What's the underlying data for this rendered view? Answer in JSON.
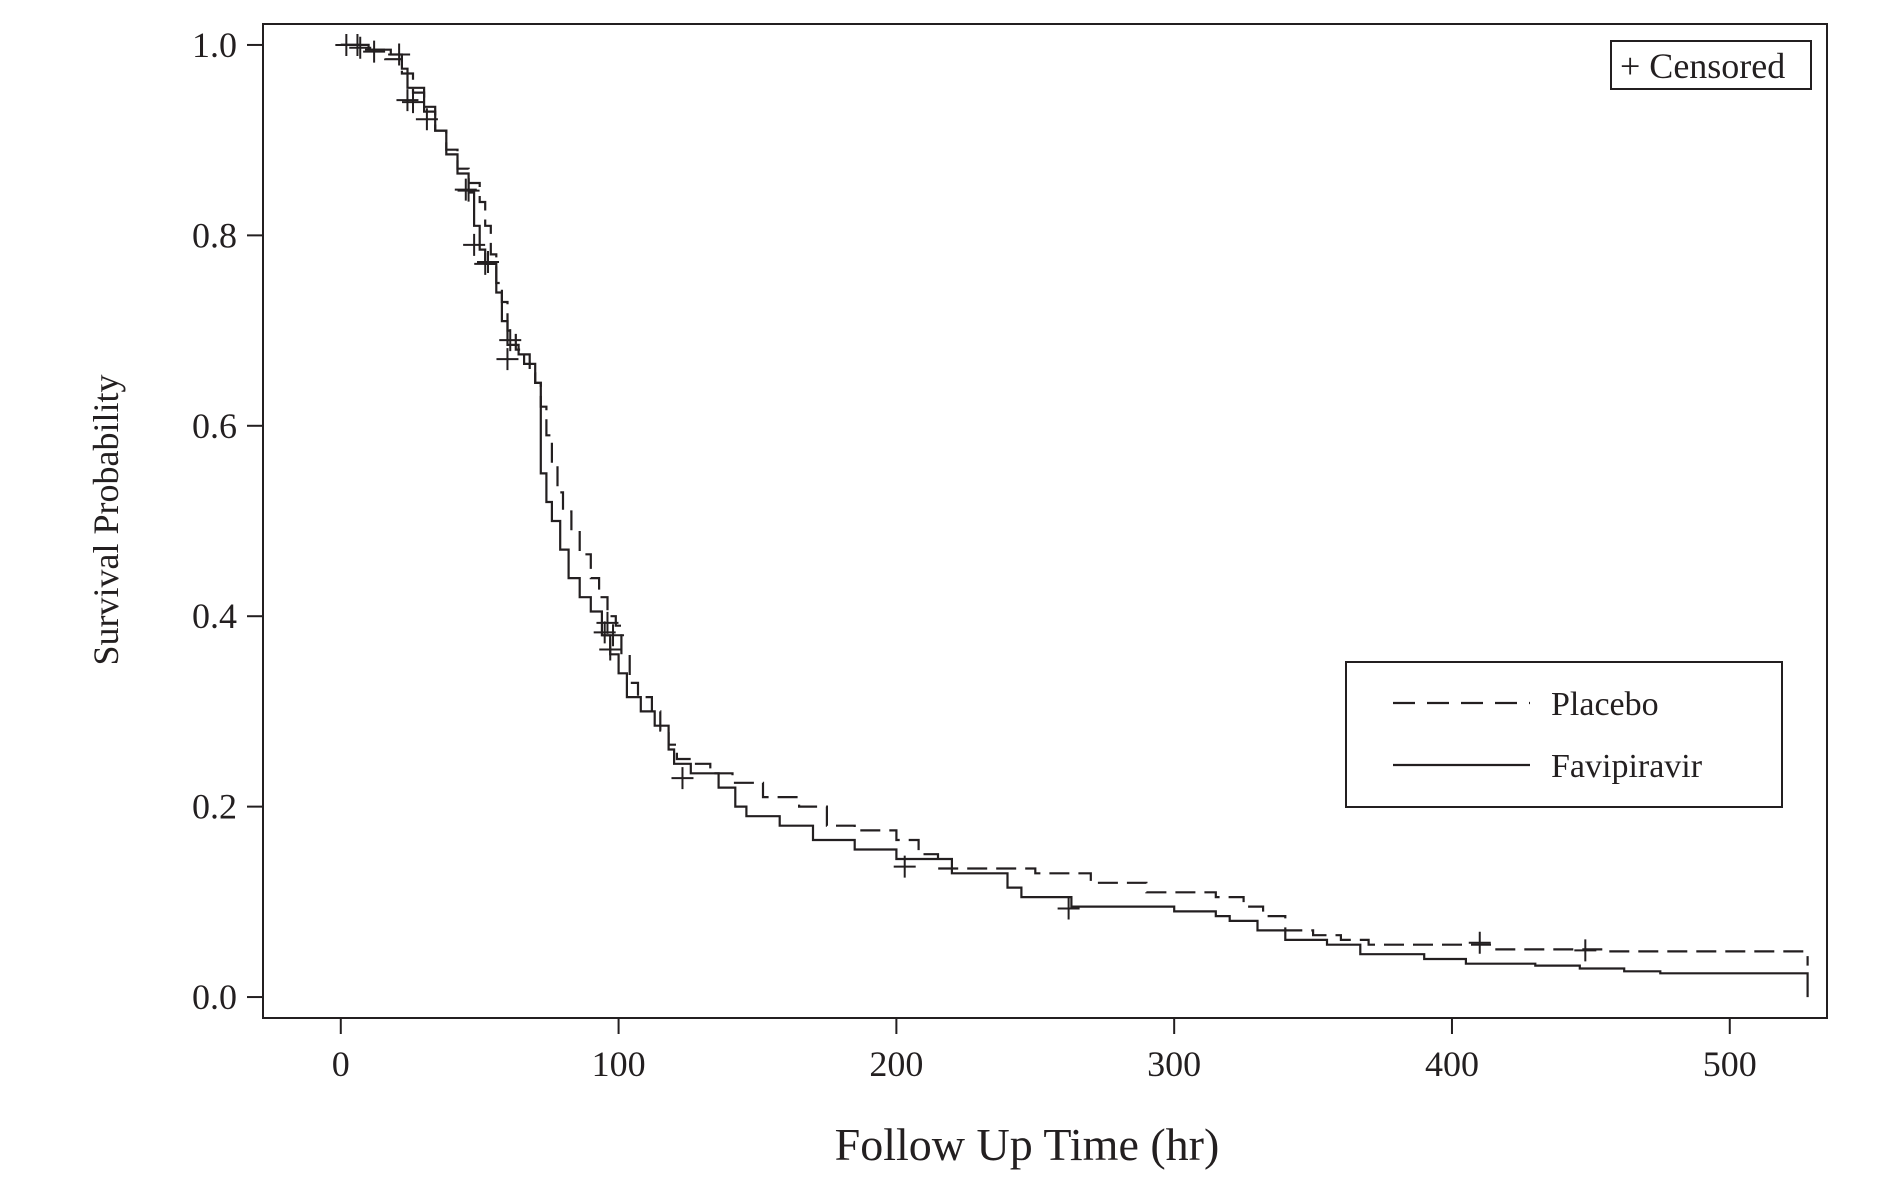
{
  "chart_data": {
    "type": "line",
    "subtype": "kaplan-meier",
    "title": "",
    "xlabel": "Follow Up Time (hr)",
    "ylabel": "Survival Probability",
    "xlim": [
      -28,
      535
    ],
    "ylim": [
      -0.022,
      1.022
    ],
    "x_ticks": [
      0,
      100,
      200,
      300,
      400,
      500
    ],
    "y_ticks": [
      0.0,
      0.2,
      0.4,
      0.6,
      0.8,
      1.0
    ],
    "x_tick_labels": [
      "0",
      "100",
      "200",
      "300",
      "400",
      "500"
    ],
    "y_tick_labels": [
      "0.0",
      "0.2",
      "0.4",
      "0.6",
      "0.8",
      "1.0"
    ],
    "grid": false,
    "censor_legend": "+ Censored",
    "censor_legend_position": "top-right",
    "legend_position": "right",
    "series": [
      {
        "name": "Placebo",
        "dash": "dashed",
        "color": "#231f20",
        "points": [
          [
            0,
            1.0
          ],
          [
            8,
            0.995
          ],
          [
            16,
            0.985
          ],
          [
            22,
            0.97
          ],
          [
            26,
            0.95
          ],
          [
            30,
            0.93
          ],
          [
            34,
            0.91
          ],
          [
            38,
            0.89
          ],
          [
            42,
            0.87
          ],
          [
            46,
            0.855
          ],
          [
            50,
            0.835
          ],
          [
            52,
            0.81
          ],
          [
            54,
            0.78
          ],
          [
            56,
            0.75
          ],
          [
            58,
            0.73
          ],
          [
            60,
            0.7
          ],
          [
            63,
            0.68
          ],
          [
            66,
            0.665
          ],
          [
            68,
            0.655
          ],
          [
            70,
            0.645
          ],
          [
            72,
            0.62
          ],
          [
            74,
            0.59
          ],
          [
            76,
            0.56
          ],
          [
            78,
            0.53
          ],
          [
            80,
            0.51
          ],
          [
            83,
            0.49
          ],
          [
            86,
            0.465
          ],
          [
            90,
            0.44
          ],
          [
            93,
            0.42
          ],
          [
            96,
            0.4
          ],
          [
            99,
            0.39
          ],
          [
            101,
            0.36
          ],
          [
            104,
            0.33
          ],
          [
            107,
            0.315
          ],
          [
            112,
            0.3
          ],
          [
            115,
            0.28
          ],
          [
            118,
            0.265
          ],
          [
            121,
            0.25
          ],
          [
            126,
            0.245
          ],
          [
            133,
            0.235
          ],
          [
            141,
            0.225
          ],
          [
            152,
            0.21
          ],
          [
            165,
            0.2
          ],
          [
            175,
            0.18
          ],
          [
            185,
            0.175
          ],
          [
            200,
            0.165
          ],
          [
            208,
            0.15
          ],
          [
            215,
            0.135
          ],
          [
            250,
            0.13
          ],
          [
            270,
            0.12
          ],
          [
            290,
            0.11
          ],
          [
            315,
            0.105
          ],
          [
            325,
            0.095
          ],
          [
            332,
            0.085
          ],
          [
            340,
            0.07
          ],
          [
            350,
            0.065
          ],
          [
            360,
            0.06
          ],
          [
            370,
            0.055
          ],
          [
            410,
            0.055
          ],
          [
            415,
            0.05
          ],
          [
            450,
            0.05
          ],
          [
            455,
            0.048
          ],
          [
            528,
            0.048
          ],
          [
            528,
            0.033
          ]
        ],
        "censored": [
          [
            7,
            0.997
          ],
          [
            12,
            0.993
          ],
          [
            21,
            0.99
          ],
          [
            24,
            0.942
          ],
          [
            31,
            0.922
          ],
          [
            46,
            0.847
          ],
          [
            48,
            0.79
          ],
          [
            53,
            0.772
          ],
          [
            61,
            0.69
          ],
          [
            96,
            0.393
          ],
          [
            98,
            0.38
          ],
          [
            410,
            0.057
          ],
          [
            448,
            0.049
          ]
        ]
      },
      {
        "name": "Favipiravir",
        "dash": "solid",
        "color": "#231f20",
        "points": [
          [
            0,
            1.0
          ],
          [
            10,
            0.995
          ],
          [
            18,
            0.99
          ],
          [
            22,
            0.975
          ],
          [
            24,
            0.955
          ],
          [
            30,
            0.935
          ],
          [
            34,
            0.91
          ],
          [
            38,
            0.885
          ],
          [
            42,
            0.865
          ],
          [
            46,
            0.845
          ],
          [
            48,
            0.81
          ],
          [
            50,
            0.785
          ],
          [
            52,
            0.77
          ],
          [
            56,
            0.74
          ],
          [
            58,
            0.71
          ],
          [
            60,
            0.685
          ],
          [
            64,
            0.675
          ],
          [
            68,
            0.665
          ],
          [
            70,
            0.645
          ],
          [
            72,
            0.55
          ],
          [
            74,
            0.52
          ],
          [
            76,
            0.5
          ],
          [
            79,
            0.47
          ],
          [
            82,
            0.44
          ],
          [
            86,
            0.42
          ],
          [
            90,
            0.405
          ],
          [
            94,
            0.38
          ],
          [
            97,
            0.36
          ],
          [
            100,
            0.34
          ],
          [
            103,
            0.315
          ],
          [
            108,
            0.3
          ],
          [
            113,
            0.285
          ],
          [
            118,
            0.26
          ],
          [
            120,
            0.245
          ],
          [
            126,
            0.235
          ],
          [
            136,
            0.22
          ],
          [
            142,
            0.2
          ],
          [
            146,
            0.19
          ],
          [
            158,
            0.18
          ],
          [
            170,
            0.165
          ],
          [
            185,
            0.155
          ],
          [
            200,
            0.145
          ],
          [
            220,
            0.13
          ],
          [
            240,
            0.115
          ],
          [
            245,
            0.105
          ],
          [
            263,
            0.095
          ],
          [
            300,
            0.09
          ],
          [
            315,
            0.085
          ],
          [
            320,
            0.08
          ],
          [
            330,
            0.07
          ],
          [
            340,
            0.06
          ],
          [
            355,
            0.055
          ],
          [
            367,
            0.045
          ],
          [
            390,
            0.04
          ],
          [
            405,
            0.035
          ],
          [
            430,
            0.033
          ],
          [
            446,
            0.03
          ],
          [
            462,
            0.027
          ],
          [
            475,
            0.025
          ],
          [
            528,
            0.025
          ],
          [
            528,
            0.0
          ]
        ],
        "censored": [
          [
            2,
            1.0
          ],
          [
            6,
            1.0
          ],
          [
            26,
            0.94
          ],
          [
            45,
            0.848
          ],
          [
            52,
            0.77
          ],
          [
            60,
            0.67
          ],
          [
            95,
            0.383
          ],
          [
            97,
            0.365
          ],
          [
            123,
            0.23
          ],
          [
            203,
            0.137
          ],
          [
            262,
            0.093
          ]
        ]
      }
    ],
    "colors": {
      "ink": "#231f20",
      "background": "#ffffff"
    }
  }
}
